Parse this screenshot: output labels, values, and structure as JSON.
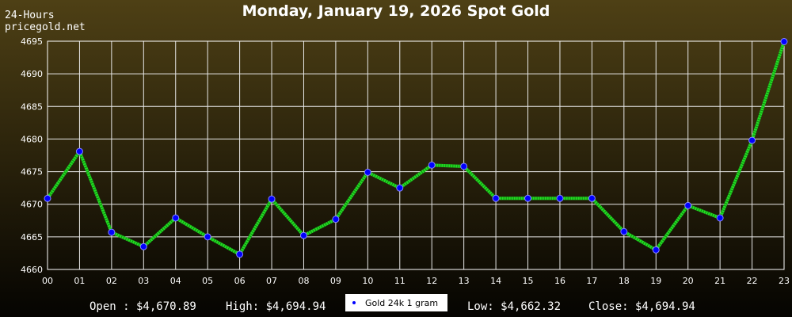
{
  "chart_data": {
    "type": "line",
    "title": "Monday, January 19, 2026 Spot Gold",
    "corner_text": [
      "24-Hours",
      "pricegold.net"
    ],
    "categories": [
      "00",
      "01",
      "02",
      "03",
      "04",
      "05",
      "06",
      "07",
      "08",
      "09",
      "10",
      "11",
      "12",
      "13",
      "14",
      "15",
      "16",
      "17",
      "18",
      "19",
      "20",
      "21",
      "22",
      "23"
    ],
    "series": [
      {
        "name": "Gold 24k 1 gram",
        "color": "#22dd22",
        "marker_color": "#0000ff",
        "values": [
          4670.89,
          4678.1,
          4665.7,
          4663.5,
          4667.9,
          4665.0,
          4662.32,
          4670.8,
          4665.2,
          4667.7,
          4674.9,
          4672.5,
          4676.0,
          4675.8,
          4670.9,
          4670.9,
          4670.9,
          4670.9,
          4665.8,
          4663.0,
          4669.8,
          4667.9,
          4679.8,
          4694.94
        ]
      }
    ],
    "ylim": [
      4660,
      4695
    ],
    "yticks": [
      4660,
      4665,
      4670,
      4675,
      4680,
      4685,
      4690,
      4695
    ],
    "grid": true,
    "footer": [
      "Open : $4,670.89",
      "High: $4,694.94",
      "Low: $4,662.32",
      "Close: $4,694.94"
    ]
  }
}
